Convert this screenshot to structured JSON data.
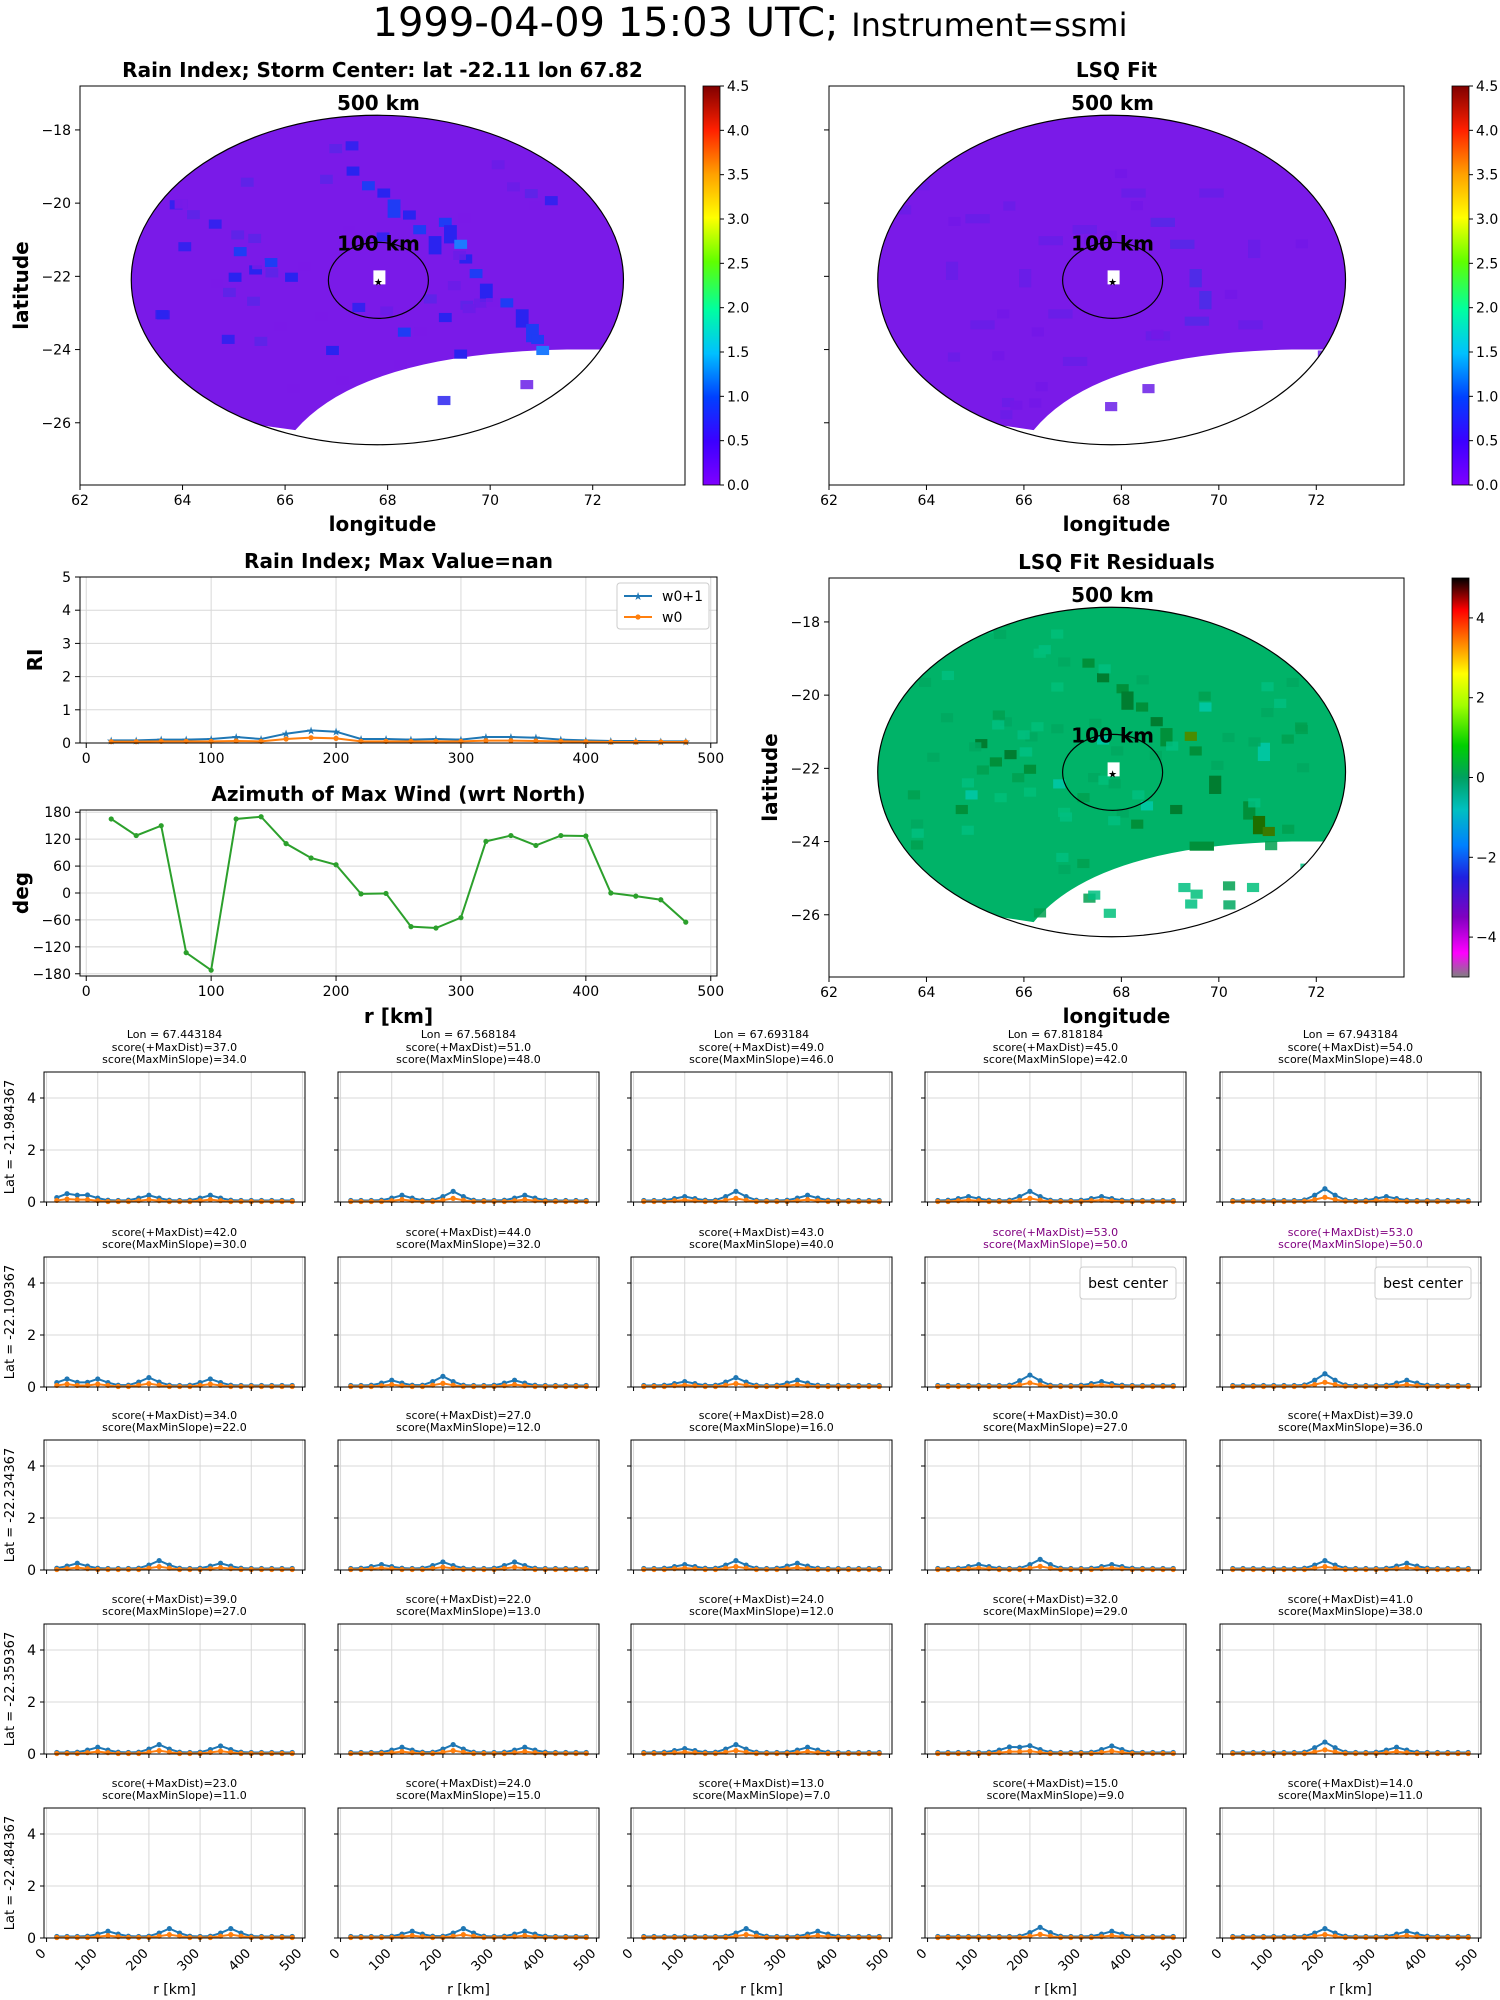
{
  "suptitle": {
    "date": "1999-04-09 15:03 UTC;",
    "instrument": "Instrument=ssmi"
  },
  "colors": {
    "w0p1": "#1f77b4",
    "w0": "#ff7f0e",
    "azimuth": "#2ca02c",
    "best": "#800080",
    "rain_bg": "#7a1ae8",
    "resid_bg": "#00b368"
  },
  "chart_data": [
    {
      "id": "rain_index_map",
      "type": "heatmap",
      "title": "Rain Index; Storm Center: lat -22.11 lon 67.82",
      "xlabel": "longitude",
      "ylabel": "latitude",
      "xlim": [
        62,
        73.8
      ],
      "ylim": [
        -27.7,
        -16.8
      ],
      "xticks": [
        62,
        64,
        66,
        68,
        70,
        72
      ],
      "yticks": [
        -18,
        -20,
        -22,
        -24,
        -26
      ],
      "center": {
        "lon": 67.82,
        "lat": -22.11
      },
      "ring_labels": [
        "500 km",
        "100 km"
      ],
      "colorbar": {
        "min": 0.0,
        "max": 4.5,
        "ticks": [
          "0.0",
          "0.5",
          "1.0",
          "1.5",
          "2.0",
          "2.5",
          "3.0",
          "3.5",
          "4.0",
          "4.5"
        ],
        "colormap": "gist_rainbow_r"
      }
    },
    {
      "id": "lsq_fit_map",
      "type": "heatmap",
      "title": "LSQ Fit",
      "xlabel": "longitude",
      "xlim": [
        62,
        73.8
      ],
      "ylim": [
        -27.7,
        -16.8
      ],
      "xticks": [
        62,
        64,
        66,
        68,
        70,
        72
      ],
      "center": {
        "lon": 67.82,
        "lat": -22.11
      },
      "ring_labels": [
        "500 km",
        "100 km"
      ],
      "colorbar": {
        "min": 0.0,
        "max": 4.5,
        "ticks": [
          "0.0",
          "0.5",
          "1.0",
          "1.5",
          "2.0",
          "2.5",
          "3.0",
          "3.5",
          "4.0",
          "4.5"
        ],
        "colormap": "gist_rainbow_r"
      }
    },
    {
      "id": "lsq_residuals_map",
      "type": "heatmap",
      "title": "LSQ Fit Residuals",
      "xlabel": "longitude",
      "ylabel": "latitude",
      "xlim": [
        62,
        73.8
      ],
      "ylim": [
        -27.7,
        -16.8
      ],
      "xticks": [
        62,
        64,
        66,
        68,
        70,
        72
      ],
      "yticks": [
        -18,
        -20,
        -22,
        -24,
        -26
      ],
      "center": {
        "lon": 67.82,
        "lat": -22.11
      },
      "ring_labels": [
        "500 km",
        "100 km"
      ],
      "colorbar": {
        "min": -5,
        "max": 5,
        "ticks": [
          "4",
          "2",
          "0",
          "−2",
          "−4"
        ],
        "colormap": "nipy_spectral"
      }
    },
    {
      "id": "rain_index_profile",
      "type": "line",
      "title": "Rain Index; Max Value=nan",
      "ylabel": "RI",
      "xlim": [
        -5,
        505
      ],
      "ylim": [
        0,
        5
      ],
      "xticks": [
        0,
        100,
        200,
        300,
        400,
        500
      ],
      "yticks": [
        0,
        1,
        2,
        3,
        4,
        5
      ],
      "grid": true,
      "legend": "top-right",
      "x": [
        20,
        40,
        60,
        80,
        100,
        120,
        140,
        160,
        180,
        200,
        220,
        240,
        260,
        280,
        300,
        320,
        340,
        360,
        380,
        400,
        420,
        440,
        460,
        480
      ],
      "series": [
        {
          "name": "w0+1",
          "values": [
            0.08,
            0.08,
            0.1,
            0.1,
            0.12,
            0.18,
            0.12,
            0.28,
            0.38,
            0.34,
            0.12,
            0.12,
            0.1,
            0.12,
            0.1,
            0.18,
            0.18,
            0.16,
            0.1,
            0.08,
            0.06,
            0.06,
            0.05,
            0.05
          ]
        },
        {
          "name": "w0",
          "values": [
            0.04,
            0.04,
            0.05,
            0.05,
            0.05,
            0.06,
            0.05,
            0.12,
            0.16,
            0.14,
            0.05,
            0.05,
            0.05,
            0.05,
            0.05,
            0.07,
            0.07,
            0.06,
            0.05,
            0.04,
            0.03,
            0.03,
            0.03,
            0.03
          ]
        }
      ]
    },
    {
      "id": "azimuth_max_wind",
      "type": "line",
      "title": "Azimuth of Max Wind (wrt North)",
      "xlabel": "r [km]",
      "ylabel": "deg",
      "xlim": [
        -5,
        505
      ],
      "ylim": [
        -185,
        185
      ],
      "xticks": [
        0,
        100,
        200,
        300,
        400,
        500
      ],
      "yticks": [
        180,
        120,
        60,
        0,
        -60,
        -120,
        -180
      ],
      "grid": true,
      "x": [
        20,
        40,
        60,
        80,
        100,
        120,
        140,
        160,
        180,
        200,
        220,
        240,
        260,
        280,
        300,
        320,
        340,
        360,
        380,
        400,
        420,
        440,
        460,
        480
      ],
      "values": [
        165,
        128,
        150,
        -133,
        -172,
        165,
        170,
        110,
        78,
        63,
        -2,
        -1,
        -75,
        -78,
        -55,
        115,
        128,
        106,
        128,
        127,
        0,
        -7,
        -15,
        -65
      ]
    },
    {
      "id": "center_search_grid",
      "type": "line",
      "xlabel": "r [km]",
      "xlim": [
        -5,
        505
      ],
      "ylim": [
        0,
        5
      ],
      "xticks": [
        0,
        100,
        200,
        300,
        400,
        500
      ],
      "yticks": [
        0,
        2,
        4
      ],
      "columns": [
        "Lon = 67.443184",
        "Lon = 67.568184",
        "Lon = 67.693184",
        "Lon = 67.818184",
        "Lon = 67.943184"
      ],
      "rows": [
        "Lat = -21.984367",
        "Lat = -22.109367",
        "Lat = -22.234367",
        "Lat = -22.359367",
        "Lat = -22.484367"
      ],
      "best_center_label": "best center",
      "x": [
        20,
        40,
        60,
        80,
        100,
        120,
        140,
        160,
        180,
        200,
        220,
        240,
        260,
        280,
        300,
        320,
        340,
        360,
        380,
        400,
        420,
        440,
        460,
        480
      ],
      "cells": [
        [
          {
            "maxdist": "score(+MaxDist)=37.0",
            "slope": "score(MaxMinSlope)=34.0",
            "best": false,
            "peaks": [
              [
                40,
                0.25
              ],
              [
                80,
                0.2
              ],
              [
                200,
                0.2
              ],
              [
                320,
                0.2
              ]
            ]
          },
          {
            "maxdist": "score(+MaxDist)=51.0",
            "slope": "score(MaxMinSlope)=48.0",
            "best": false,
            "peaks": [
              [
                120,
                0.2
              ],
              [
                220,
                0.35
              ],
              [
                360,
                0.2
              ]
            ]
          },
          {
            "maxdist": "score(+MaxDist)=49.0",
            "slope": "score(MaxMinSlope)=46.0",
            "best": false,
            "peaks": [
              [
                100,
                0.15
              ],
              [
                200,
                0.35
              ],
              [
                340,
                0.2
              ]
            ]
          },
          {
            "maxdist": "score(+MaxDist)=45.0",
            "slope": "score(MaxMinSlope)=42.0",
            "best": false,
            "peaks": [
              [
                80,
                0.15
              ],
              [
                200,
                0.35
              ],
              [
                340,
                0.15
              ]
            ]
          },
          {
            "maxdist": "score(+MaxDist)=54.0",
            "slope": "score(MaxMinSlope)=48.0",
            "best": false,
            "peaks": [
              [
                200,
                0.45
              ],
              [
                320,
                0.15
              ]
            ]
          }
        ],
        [
          {
            "maxdist": "score(+MaxDist)=42.0",
            "slope": "score(MaxMinSlope)=30.0",
            "best": false,
            "peaks": [
              [
                40,
                0.25
              ],
              [
                100,
                0.25
              ],
              [
                200,
                0.3
              ],
              [
                320,
                0.25
              ]
            ]
          },
          {
            "maxdist": "score(+MaxDist)=44.0",
            "slope": "score(MaxMinSlope)=32.0",
            "best": false,
            "peaks": [
              [
                100,
                0.2
              ],
              [
                200,
                0.35
              ],
              [
                340,
                0.2
              ]
            ]
          },
          {
            "maxdist": "score(+MaxDist)=43.0",
            "slope": "score(MaxMinSlope)=40.0",
            "best": false,
            "peaks": [
              [
                100,
                0.15
              ],
              [
                200,
                0.3
              ],
              [
                320,
                0.2
              ]
            ]
          },
          {
            "maxdist": "score(+MaxDist)=53.0",
            "slope": "score(MaxMinSlope)=50.0",
            "best": true,
            "peaks": [
              [
                200,
                0.4
              ],
              [
                340,
                0.15
              ]
            ]
          },
          {
            "maxdist": "score(+MaxDist)=53.0",
            "slope": "score(MaxMinSlope)=50.0",
            "best": true,
            "peaks": [
              [
                200,
                0.45
              ],
              [
                360,
                0.2
              ]
            ]
          }
        ],
        [
          {
            "maxdist": "score(+MaxDist)=34.0",
            "slope": "score(MaxMinSlope)=22.0",
            "best": false,
            "peaks": [
              [
                60,
                0.2
              ],
              [
                220,
                0.3
              ],
              [
                340,
                0.2
              ]
            ]
          },
          {
            "maxdist": "score(+MaxDist)=27.0",
            "slope": "score(MaxMinSlope)=12.0",
            "best": false,
            "peaks": [
              [
                80,
                0.15
              ],
              [
                200,
                0.25
              ],
              [
                340,
                0.25
              ]
            ]
          },
          {
            "maxdist": "score(+MaxDist)=28.0",
            "slope": "score(MaxMinSlope)=16.0",
            "best": false,
            "peaks": [
              [
                100,
                0.15
              ],
              [
                200,
                0.3
              ],
              [
                320,
                0.2
              ]
            ]
          },
          {
            "maxdist": "score(+MaxDist)=30.0",
            "slope": "score(MaxMinSlope)=27.0",
            "best": false,
            "peaks": [
              [
                100,
                0.15
              ],
              [
                220,
                0.35
              ],
              [
                360,
                0.15
              ]
            ]
          },
          {
            "maxdist": "score(+MaxDist)=39.0",
            "slope": "score(MaxMinSlope)=36.0",
            "best": false,
            "peaks": [
              [
                200,
                0.3
              ],
              [
                360,
                0.2
              ]
            ]
          }
        ],
        [
          {
            "maxdist": "score(+MaxDist)=39.0",
            "slope": "score(MaxMinSlope)=27.0",
            "best": false,
            "peaks": [
              [
                100,
                0.2
              ],
              [
                220,
                0.3
              ],
              [
                340,
                0.25
              ]
            ]
          },
          {
            "maxdist": "score(+MaxDist)=22.0",
            "slope": "score(MaxMinSlope)=13.0",
            "best": false,
            "peaks": [
              [
                120,
                0.2
              ],
              [
                220,
                0.3
              ],
              [
                360,
                0.2
              ]
            ]
          },
          {
            "maxdist": "score(+MaxDist)=24.0",
            "slope": "score(MaxMinSlope)=12.0",
            "best": false,
            "peaks": [
              [
                100,
                0.15
              ],
              [
                200,
                0.3
              ],
              [
                340,
                0.2
              ]
            ]
          },
          {
            "maxdist": "score(+MaxDist)=32.0",
            "slope": "score(MaxMinSlope)=29.0",
            "best": false,
            "peaks": [
              [
                160,
                0.2
              ],
              [
                200,
                0.25
              ],
              [
                360,
                0.25
              ]
            ]
          },
          {
            "maxdist": "score(+MaxDist)=41.0",
            "slope": "score(MaxMinSlope)=38.0",
            "best": false,
            "peaks": [
              [
                200,
                0.4
              ],
              [
                340,
                0.2
              ]
            ]
          }
        ],
        [
          {
            "maxdist": "score(+MaxDist)=23.0",
            "slope": "score(MaxMinSlope)=11.0",
            "best": false,
            "peaks": [
              [
                120,
                0.2
              ],
              [
                240,
                0.3
              ],
              [
                360,
                0.3
              ]
            ]
          },
          {
            "maxdist": "score(+MaxDist)=24.0",
            "slope": "score(MaxMinSlope)=15.0",
            "best": false,
            "peaks": [
              [
                140,
                0.2
              ],
              [
                240,
                0.3
              ],
              [
                360,
                0.2
              ]
            ]
          },
          {
            "maxdist": "score(+MaxDist)=13.0",
            "slope": "score(MaxMinSlope)=7.0",
            "best": false,
            "peaks": [
              [
                220,
                0.3
              ],
              [
                360,
                0.2
              ]
            ]
          },
          {
            "maxdist": "score(+MaxDist)=15.0",
            "slope": "score(MaxMinSlope)=9.0",
            "best": false,
            "peaks": [
              [
                220,
                0.35
              ],
              [
                360,
                0.2
              ]
            ]
          },
          {
            "maxdist": "score(+MaxDist)=14.0",
            "slope": "score(MaxMinSlope)=11.0",
            "best": false,
            "peaks": [
              [
                200,
                0.3
              ],
              [
                360,
                0.2
              ]
            ]
          }
        ]
      ]
    }
  ]
}
